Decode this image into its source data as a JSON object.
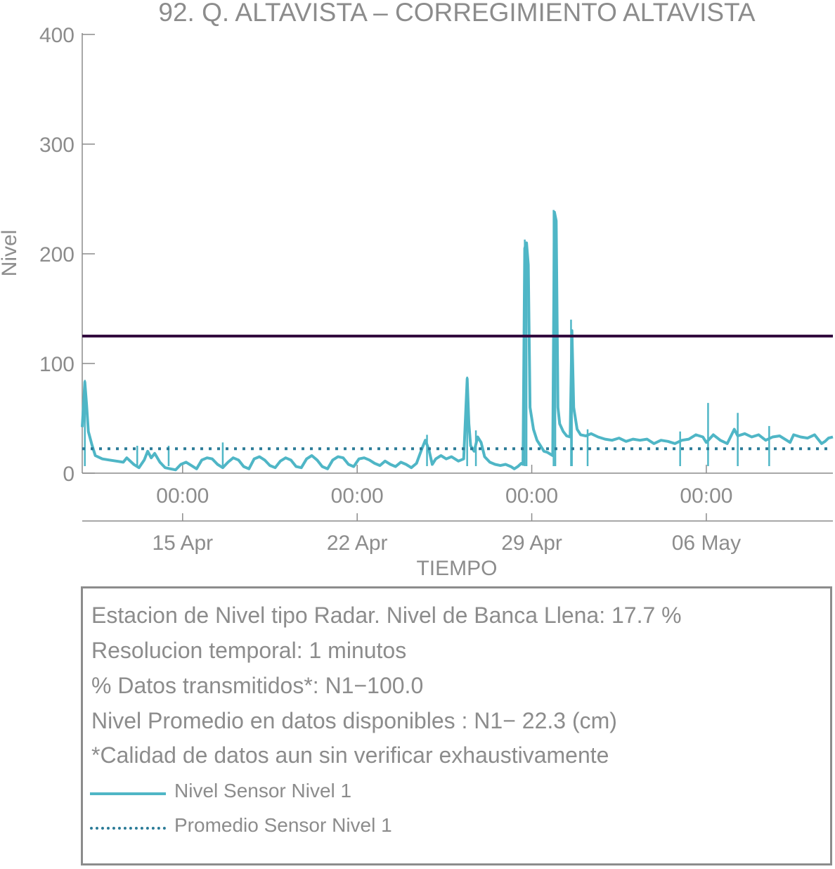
{
  "chart_data": {
    "type": "line",
    "title": "92. Q. ALTAVISTA – CORREGIMIENTO ALTAVISTA",
    "xlabel": "TIEMPO",
    "ylabel": "Nivel",
    "ylim": [
      0,
      400
    ],
    "yticks": [
      0,
      100,
      200,
      300,
      400
    ],
    "xlim_days": [
      -4.75,
      38.25
    ],
    "xticks": [
      {
        "day": 1,
        "time": "00:00",
        "date": "15 Apr"
      },
      {
        "day": 11,
        "time": "00:00",
        "date": "22 Apr"
      },
      {
        "day": 21,
        "time": "00:00",
        "date": "29 Apr"
      },
      {
        "day": 31,
        "time": "00:00",
        "date": "06 May"
      }
    ],
    "series": [
      {
        "name": "Nivel Sensor Nivel 1",
        "color": "#4fb6c6",
        "style": "solid",
        "points": [
          [
            -4.75,
            42
          ],
          [
            -4.6,
            83
          ],
          [
            -4.5,
            62
          ],
          [
            -4.4,
            38
          ],
          [
            -4.2,
            26
          ],
          [
            -4.0,
            16
          ],
          [
            -3.6,
            13
          ],
          [
            -3.2,
            12
          ],
          [
            -2.8,
            11
          ],
          [
            -2.4,
            10
          ],
          [
            -2.2,
            14
          ],
          [
            -1.8,
            8
          ],
          [
            -1.5,
            5
          ],
          [
            -1.2,
            12
          ],
          [
            -1.0,
            20
          ],
          [
            -0.8,
            14
          ],
          [
            -0.6,
            18
          ],
          [
            -0.3,
            10
          ],
          [
            0.0,
            5
          ],
          [
            0.3,
            4
          ],
          [
            0.6,
            3
          ],
          [
            0.9,
            8
          ],
          [
            1.2,
            10
          ],
          [
            1.5,
            7
          ],
          [
            1.8,
            4
          ],
          [
            2.1,
            12
          ],
          [
            2.4,
            14
          ],
          [
            2.7,
            13
          ],
          [
            3.0,
            8
          ],
          [
            3.3,
            5
          ],
          [
            3.6,
            10
          ],
          [
            3.9,
            14
          ],
          [
            4.2,
            12
          ],
          [
            4.5,
            6
          ],
          [
            4.8,
            4
          ],
          [
            5.1,
            13
          ],
          [
            5.4,
            15
          ],
          [
            5.7,
            12
          ],
          [
            6.0,
            7
          ],
          [
            6.3,
            5
          ],
          [
            6.6,
            11
          ],
          [
            6.9,
            14
          ],
          [
            7.2,
            12
          ],
          [
            7.5,
            6
          ],
          [
            7.8,
            5
          ],
          [
            8.1,
            13
          ],
          [
            8.4,
            16
          ],
          [
            8.7,
            12
          ],
          [
            9.0,
            6
          ],
          [
            9.3,
            4
          ],
          [
            9.6,
            12
          ],
          [
            9.9,
            15
          ],
          [
            10.2,
            14
          ],
          [
            10.5,
            8
          ],
          [
            10.8,
            6
          ],
          [
            11.1,
            13
          ],
          [
            11.4,
            14
          ],
          [
            11.7,
            12
          ],
          [
            12.0,
            9
          ],
          [
            12.3,
            7
          ],
          [
            12.6,
            11
          ],
          [
            12.9,
            8
          ],
          [
            13.2,
            6
          ],
          [
            13.5,
            10
          ],
          [
            13.8,
            8
          ],
          [
            14.1,
            5
          ],
          [
            14.4,
            9
          ],
          [
            14.7,
            22
          ],
          [
            14.9,
            30
          ],
          [
            15.1,
            22
          ],
          [
            15.3,
            8
          ],
          [
            15.5,
            13
          ],
          [
            15.8,
            16
          ],
          [
            16.1,
            13
          ],
          [
            16.4,
            15
          ],
          [
            16.8,
            11
          ],
          [
            17.1,
            13
          ],
          [
            17.3,
            86
          ],
          [
            17.4,
            45
          ],
          [
            17.5,
            25
          ],
          [
            17.7,
            20
          ],
          [
            17.9,
            33
          ],
          [
            18.1,
            28
          ],
          [
            18.3,
            15
          ],
          [
            18.6,
            10
          ],
          [
            18.9,
            8
          ],
          [
            19.2,
            7
          ],
          [
            19.5,
            8
          ],
          [
            19.8,
            6
          ],
          [
            20.0,
            4
          ],
          [
            20.2,
            6
          ],
          [
            20.4,
            9
          ],
          [
            20.5,
            8
          ],
          [
            20.6,
            205
          ],
          [
            20.7,
            210
          ],
          [
            20.8,
            190
          ],
          [
            20.9,
            60
          ],
          [
            21.1,
            40
          ],
          [
            21.3,
            30
          ],
          [
            21.5,
            25
          ],
          [
            21.7,
            20
          ],
          [
            21.9,
            19
          ],
          [
            22.1,
            17
          ],
          [
            22.2,
            16
          ],
          [
            22.3,
            238
          ],
          [
            22.4,
            230
          ],
          [
            22.5,
            60
          ],
          [
            22.6,
            45
          ],
          [
            22.8,
            38
          ],
          [
            23.0,
            34
          ],
          [
            23.2,
            33
          ],
          [
            23.3,
            130
          ],
          [
            23.4,
            60
          ],
          [
            23.6,
            40
          ],
          [
            23.8,
            35
          ],
          [
            24.1,
            34
          ],
          [
            24.4,
            36
          ],
          [
            24.8,
            33
          ],
          [
            25.2,
            31
          ],
          [
            25.6,
            30
          ],
          [
            26.0,
            32
          ],
          [
            26.4,
            29
          ],
          [
            26.8,
            31
          ],
          [
            27.2,
            30
          ],
          [
            27.6,
            31
          ],
          [
            28.0,
            27
          ],
          [
            28.4,
            30
          ],
          [
            28.8,
            29
          ],
          [
            29.2,
            27
          ],
          [
            29.6,
            30
          ],
          [
            30.0,
            31
          ],
          [
            30.4,
            35
          ],
          [
            30.8,
            33
          ],
          [
            31.0,
            28
          ],
          [
            31.4,
            35
          ],
          [
            31.8,
            30
          ],
          [
            32.2,
            27
          ],
          [
            32.6,
            40
          ],
          [
            32.8,
            34
          ],
          [
            33.2,
            36
          ],
          [
            33.6,
            33
          ],
          [
            34.0,
            35
          ],
          [
            34.4,
            30
          ],
          [
            34.8,
            33
          ],
          [
            35.2,
            34
          ],
          [
            35.6,
            30
          ],
          [
            35.8,
            28
          ],
          [
            36.0,
            35
          ],
          [
            36.4,
            33
          ],
          [
            36.8,
            32
          ],
          [
            37.2,
            35
          ],
          [
            37.6,
            27
          ],
          [
            37.8,
            29
          ],
          [
            38.0,
            32
          ],
          [
            38.25,
            33
          ]
        ],
        "spikes": [
          [
            -4.6,
            85
          ],
          [
            -1.6,
            25
          ],
          [
            0.2,
            25
          ],
          [
            3.3,
            28
          ],
          [
            15.0,
            35
          ],
          [
            17.3,
            88
          ],
          [
            17.8,
            39
          ],
          [
            20.6,
            213
          ],
          [
            20.7,
            205
          ],
          [
            22.25,
            240
          ],
          [
            22.35,
            236
          ],
          [
            23.25,
            140
          ],
          [
            23.3,
            130
          ],
          [
            24.2,
            40
          ],
          [
            29.5,
            38
          ],
          [
            31.1,
            64
          ],
          [
            32.8,
            55
          ],
          [
            34.6,
            43
          ]
        ]
      },
      {
        "name": "Promedio Sensor Nivel 1",
        "color": "#2b7b97",
        "style": "dotted",
        "value": 22.3
      }
    ],
    "reference_lines": [
      {
        "value": 125,
        "color": "#330a3f"
      }
    ]
  },
  "info": {
    "lines": [
      "Estacion de Nivel tipo Radar. Nivel de Banca Llena: 17.7 %",
      "Resolucion temporal: 1 minutos",
      "% Datos transmitidos*: N1−100.0",
      "Nivel Promedio en datos disponibles : N1− 22.3 (cm)",
      "*Calidad de datos aun sin verificar exhaustivamente"
    ],
    "legend": [
      {
        "label": "Nivel Sensor Nivel 1",
        "style": "solid"
      },
      {
        "label": "Promedio Sensor Nivel 1",
        "style": "dotted"
      }
    ]
  }
}
